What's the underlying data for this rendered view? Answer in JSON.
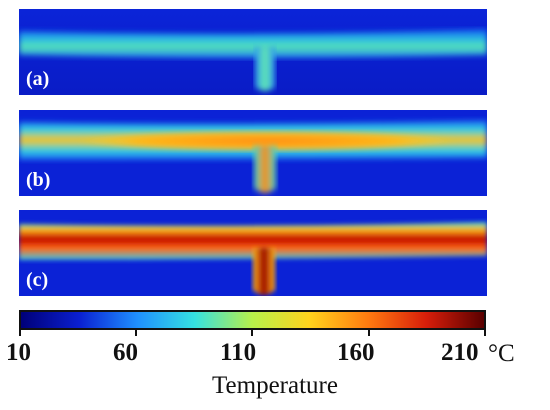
{
  "panels": [
    {
      "label": "(a)",
      "colors": {
        "background": "#0b22d6",
        "stream": "#3bd8c8",
        "core": "#5ee8b0"
      }
    },
    {
      "label": "(b)",
      "colors": {
        "background": "#0b22d6",
        "stream": "#2fc6e0",
        "core": "#f7b41a"
      }
    },
    {
      "label": "(c)",
      "colors": {
        "background": "#0b22d6",
        "stream": "#ff5a0a",
        "core": "#a00000"
      }
    }
  ],
  "colorbar": {
    "ticks": [
      "10",
      "60",
      "110",
      "160",
      "210"
    ],
    "unit": "°C",
    "title": "Temperature",
    "colors": [
      "#000078",
      "#0a1fd0",
      "#1f8fff",
      "#35e0e0",
      "#b8f04a",
      "#ffd21c",
      "#ff7a10",
      "#d81e0a",
      "#5a0000"
    ]
  }
}
